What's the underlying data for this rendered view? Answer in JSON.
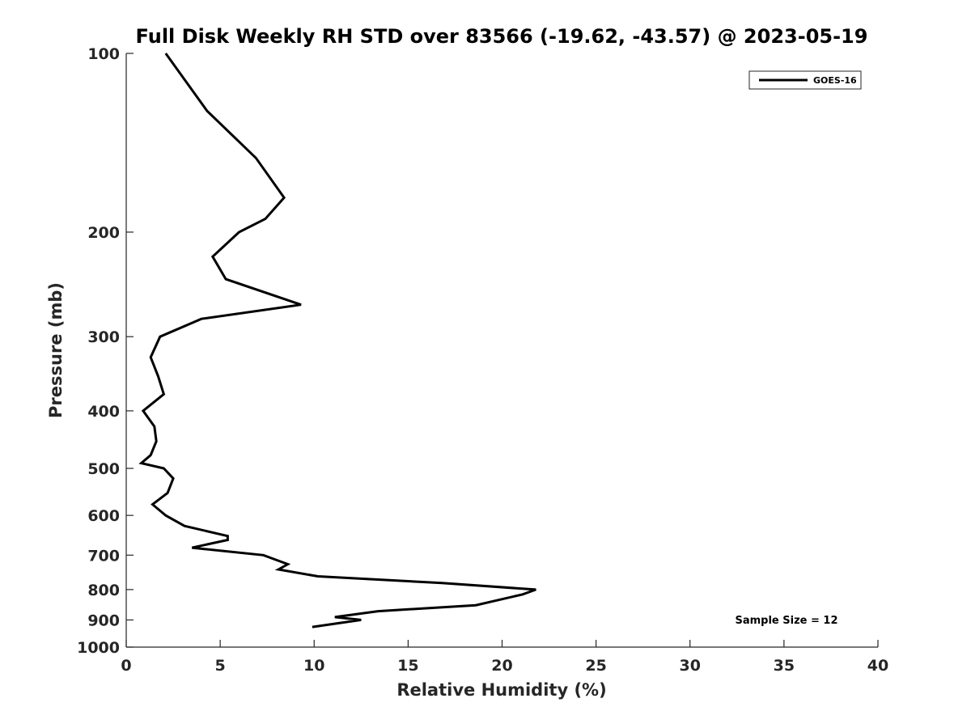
{
  "chart_data": {
    "type": "line",
    "title": "Full Disk Weekly RH STD over 83566 (-19.62, -43.57) @ 2023-05-19",
    "xlabel": "Relative Humidity (%)",
    "ylabel": "Pressure (mb)",
    "xlim": [
      0,
      40
    ],
    "ylim": [
      100,
      1000
    ],
    "y_scale": "log",
    "y_reversed": true,
    "x_ticks": [
      "0",
      "5",
      "10",
      "15",
      "20",
      "25",
      "30",
      "35",
      "40"
    ],
    "y_ticks": [
      "100",
      "200",
      "300",
      "400",
      "500",
      "600",
      "700",
      "800",
      "900",
      "1000"
    ],
    "grid": false,
    "legend": {
      "position": "top-right",
      "entries": [
        "GOES-16"
      ]
    },
    "annotations": [
      {
        "text": "Sample Size = 12",
        "position": "bottom-right"
      }
    ],
    "series": [
      {
        "name": "GOES-16",
        "color": "#000000",
        "points": [
          [
            2.1,
            100
          ],
          [
            4.3,
            125
          ],
          [
            6.9,
            150
          ],
          [
            8.4,
            175
          ],
          [
            7.4,
            190
          ],
          [
            6.0,
            200
          ],
          [
            4.6,
            220
          ],
          [
            5.3,
            240
          ],
          [
            9.3,
            265
          ],
          [
            4.0,
            280
          ],
          [
            1.8,
            300
          ],
          [
            1.3,
            325
          ],
          [
            1.7,
            350
          ],
          [
            2.0,
            375
          ],
          [
            0.9,
            400
          ],
          [
            1.5,
            425
          ],
          [
            1.6,
            450
          ],
          [
            1.3,
            475
          ],
          [
            0.8,
            490
          ],
          [
            2.0,
            500
          ],
          [
            2.5,
            520
          ],
          [
            2.2,
            550
          ],
          [
            1.4,
            575
          ],
          [
            2.1,
            600
          ],
          [
            3.1,
            625
          ],
          [
            5.4,
            650
          ],
          [
            5.4,
            660
          ],
          [
            3.5,
            680
          ],
          [
            7.3,
            700
          ],
          [
            8.6,
            725
          ],
          [
            8.1,
            740
          ],
          [
            10.2,
            760
          ],
          [
            16.8,
            780
          ],
          [
            21.8,
            800
          ],
          [
            21.1,
            815
          ],
          [
            18.6,
            850
          ],
          [
            13.4,
            870
          ],
          [
            11.1,
            890
          ],
          [
            12.5,
            900
          ],
          [
            9.9,
            925
          ]
        ]
      }
    ]
  }
}
